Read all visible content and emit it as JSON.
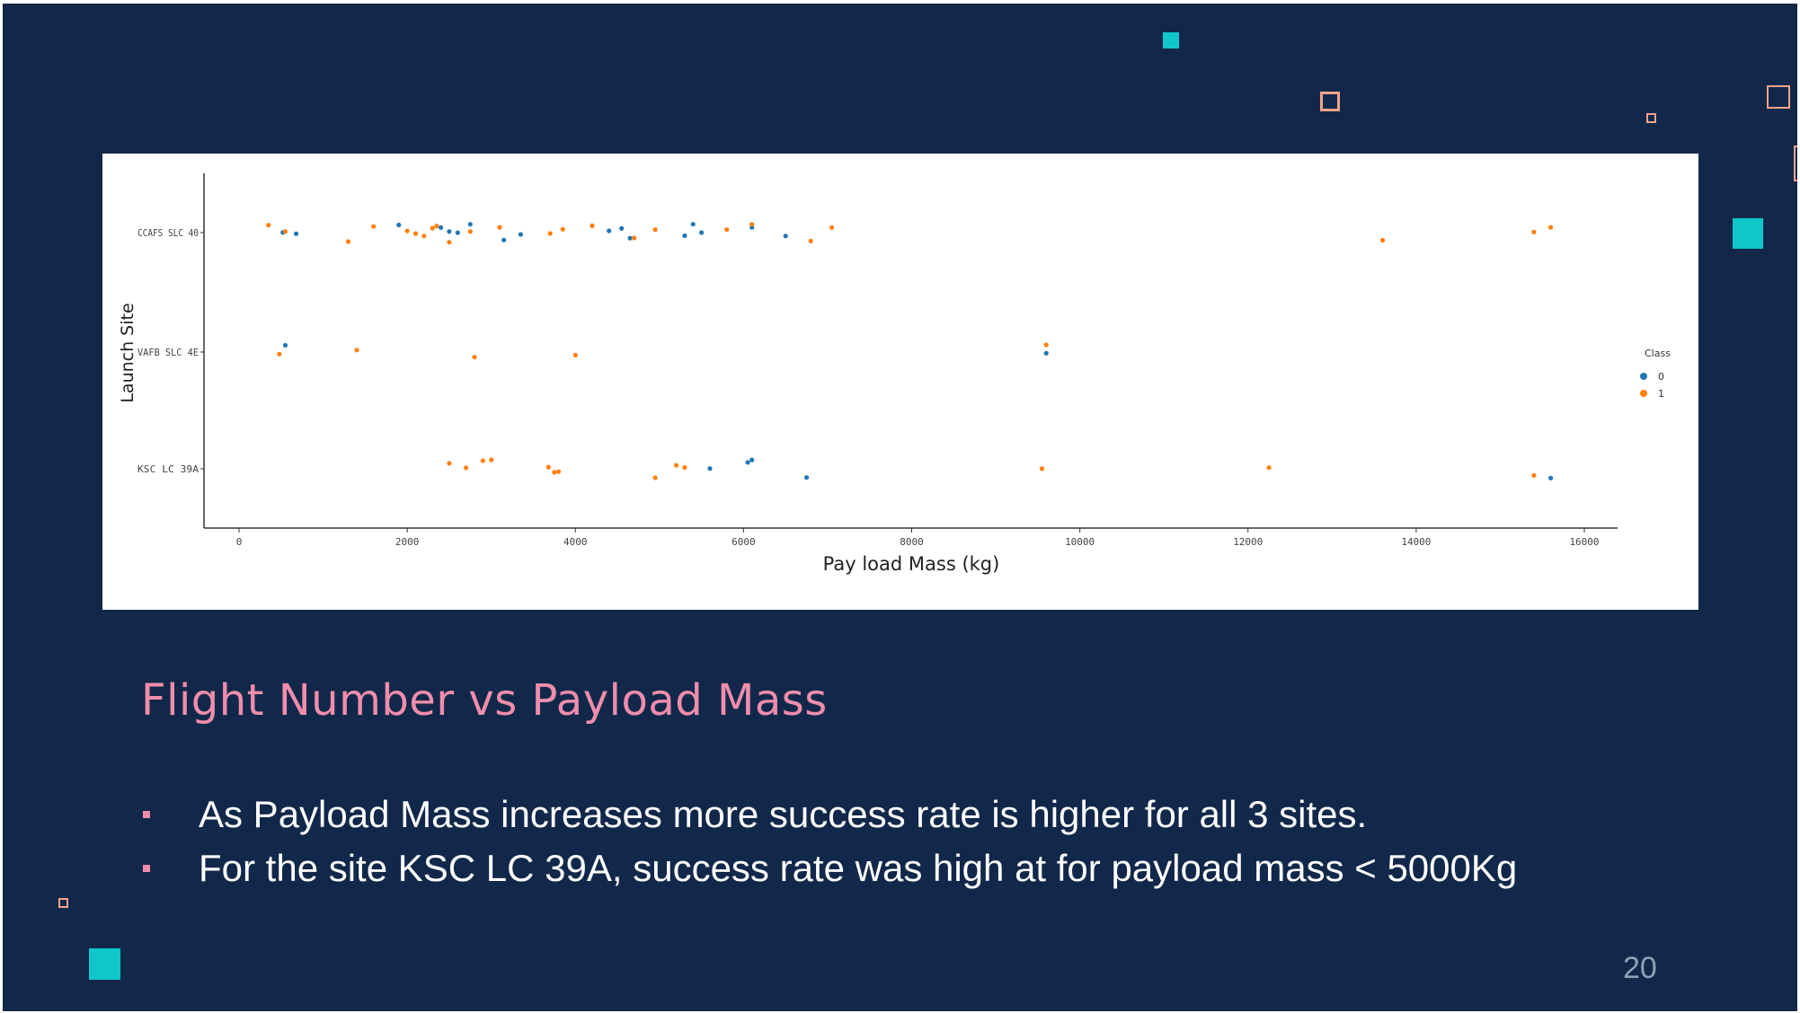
{
  "slide": {
    "title": "Flight Number vs Payload Mass",
    "bullets": [
      "As Payload Mass increases more success rate is higher for all 3 sites.",
      "For the site KSC LC 39A, success rate was high at for payload mass < 5000Kg"
    ],
    "page_number": "20",
    "colors": {
      "background": "#12284a",
      "title": "#f08dac",
      "accent_teal": "#11c6c9",
      "accent_outline": "#f4a38a"
    }
  },
  "chart_data": {
    "type": "scatter",
    "title": "",
    "xlabel": "Pay load Mass (kg)",
    "ylabel": "Launch Site",
    "xlim": [
      -400,
      16400
    ],
    "xticks": [
      0,
      2000,
      4000,
      6000,
      8000,
      10000,
      12000,
      14000,
      16000
    ],
    "xtick_labels": [
      "0",
      "2000",
      "4000",
      "6000",
      "8000",
      "10000",
      "12000",
      "14000",
      "16000"
    ],
    "categories": [
      "CCAFS SLC 40",
      "VAFB SLC 4E",
      "KSC LC 39A"
    ],
    "grid": false,
    "legend": {
      "title": "Class",
      "placement": "right",
      "entries": [
        {
          "label": "0",
          "color": "#1f77b4"
        },
        {
          "label": "1",
          "color": "#ff7f0e"
        }
      ]
    },
    "series": [
      {
        "name": "0",
        "color": "#1f77b4",
        "points": [
          {
            "x": 520,
            "y": "CCAFS SLC 40"
          },
          {
            "x": 680,
            "y": "CCAFS SLC 40"
          },
          {
            "x": 1900,
            "y": "CCAFS SLC 40"
          },
          {
            "x": 2400,
            "y": "CCAFS SLC 40"
          },
          {
            "x": 2500,
            "y": "CCAFS SLC 40"
          },
          {
            "x": 2600,
            "y": "CCAFS SLC 40"
          },
          {
            "x": 2750,
            "y": "CCAFS SLC 40"
          },
          {
            "x": 3150,
            "y": "CCAFS SLC 40"
          },
          {
            "x": 3350,
            "y": "CCAFS SLC 40"
          },
          {
            "x": 4400,
            "y": "CCAFS SLC 40"
          },
          {
            "x": 4550,
            "y": "CCAFS SLC 40"
          },
          {
            "x": 4650,
            "y": "CCAFS SLC 40"
          },
          {
            "x": 5300,
            "y": "CCAFS SLC 40"
          },
          {
            "x": 5400,
            "y": "CCAFS SLC 40"
          },
          {
            "x": 5500,
            "y": "CCAFS SLC 40"
          },
          {
            "x": 6100,
            "y": "CCAFS SLC 40"
          },
          {
            "x": 6500,
            "y": "CCAFS SLC 40"
          },
          {
            "x": 550,
            "y": "VAFB SLC 4E"
          },
          {
            "x": 9600,
            "y": "VAFB SLC 4E"
          },
          {
            "x": 5600,
            "y": "KSC LC 39A"
          },
          {
            "x": 6050,
            "y": "KSC LC 39A"
          },
          {
            "x": 6100,
            "y": "KSC LC 39A"
          },
          {
            "x": 6750,
            "y": "KSC LC 39A"
          },
          {
            "x": 15600,
            "y": "KSC LC 39A"
          }
        ]
      },
      {
        "name": "1",
        "color": "#ff7f0e",
        "points": [
          {
            "x": 350,
            "y": "CCAFS SLC 40"
          },
          {
            "x": 550,
            "y": "CCAFS SLC 40"
          },
          {
            "x": 1300,
            "y": "CCAFS SLC 40"
          },
          {
            "x": 1600,
            "y": "CCAFS SLC 40"
          },
          {
            "x": 2000,
            "y": "CCAFS SLC 40"
          },
          {
            "x": 2100,
            "y": "CCAFS SLC 40"
          },
          {
            "x": 2200,
            "y": "CCAFS SLC 40"
          },
          {
            "x": 2300,
            "y": "CCAFS SLC 40"
          },
          {
            "x": 2350,
            "y": "CCAFS SLC 40"
          },
          {
            "x": 2500,
            "y": "CCAFS SLC 40"
          },
          {
            "x": 2750,
            "y": "CCAFS SLC 40"
          },
          {
            "x": 3100,
            "y": "CCAFS SLC 40"
          },
          {
            "x": 3700,
            "y": "CCAFS SLC 40"
          },
          {
            "x": 3850,
            "y": "CCAFS SLC 40"
          },
          {
            "x": 4200,
            "y": "CCAFS SLC 40"
          },
          {
            "x": 4700,
            "y": "CCAFS SLC 40"
          },
          {
            "x": 4950,
            "y": "CCAFS SLC 40"
          },
          {
            "x": 5800,
            "y": "CCAFS SLC 40"
          },
          {
            "x": 6100,
            "y": "CCAFS SLC 40"
          },
          {
            "x": 6800,
            "y": "CCAFS SLC 40"
          },
          {
            "x": 7050,
            "y": "CCAFS SLC 40"
          },
          {
            "x": 13600,
            "y": "CCAFS SLC 40"
          },
          {
            "x": 15400,
            "y": "CCAFS SLC 40"
          },
          {
            "x": 15600,
            "y": "CCAFS SLC 40"
          },
          {
            "x": 480,
            "y": "VAFB SLC 4E"
          },
          {
            "x": 1400,
            "y": "VAFB SLC 4E"
          },
          {
            "x": 2800,
            "y": "VAFB SLC 4E"
          },
          {
            "x": 4000,
            "y": "VAFB SLC 4E"
          },
          {
            "x": 9600,
            "y": "VAFB SLC 4E"
          },
          {
            "x": 2500,
            "y": "KSC LC 39A"
          },
          {
            "x": 2700,
            "y": "KSC LC 39A"
          },
          {
            "x": 2900,
            "y": "KSC LC 39A"
          },
          {
            "x": 3000,
            "y": "KSC LC 39A"
          },
          {
            "x": 3680,
            "y": "KSC LC 39A"
          },
          {
            "x": 3750,
            "y": "KSC LC 39A"
          },
          {
            "x": 3800,
            "y": "KSC LC 39A"
          },
          {
            "x": 4950,
            "y": "KSC LC 39A"
          },
          {
            "x": 5200,
            "y": "KSC LC 39A"
          },
          {
            "x": 5300,
            "y": "KSC LC 39A"
          },
          {
            "x": 9550,
            "y": "KSC LC 39A"
          },
          {
            "x": 12250,
            "y": "KSC LC 39A"
          },
          {
            "x": 15400,
            "y": "KSC LC 39A"
          }
        ]
      }
    ]
  }
}
